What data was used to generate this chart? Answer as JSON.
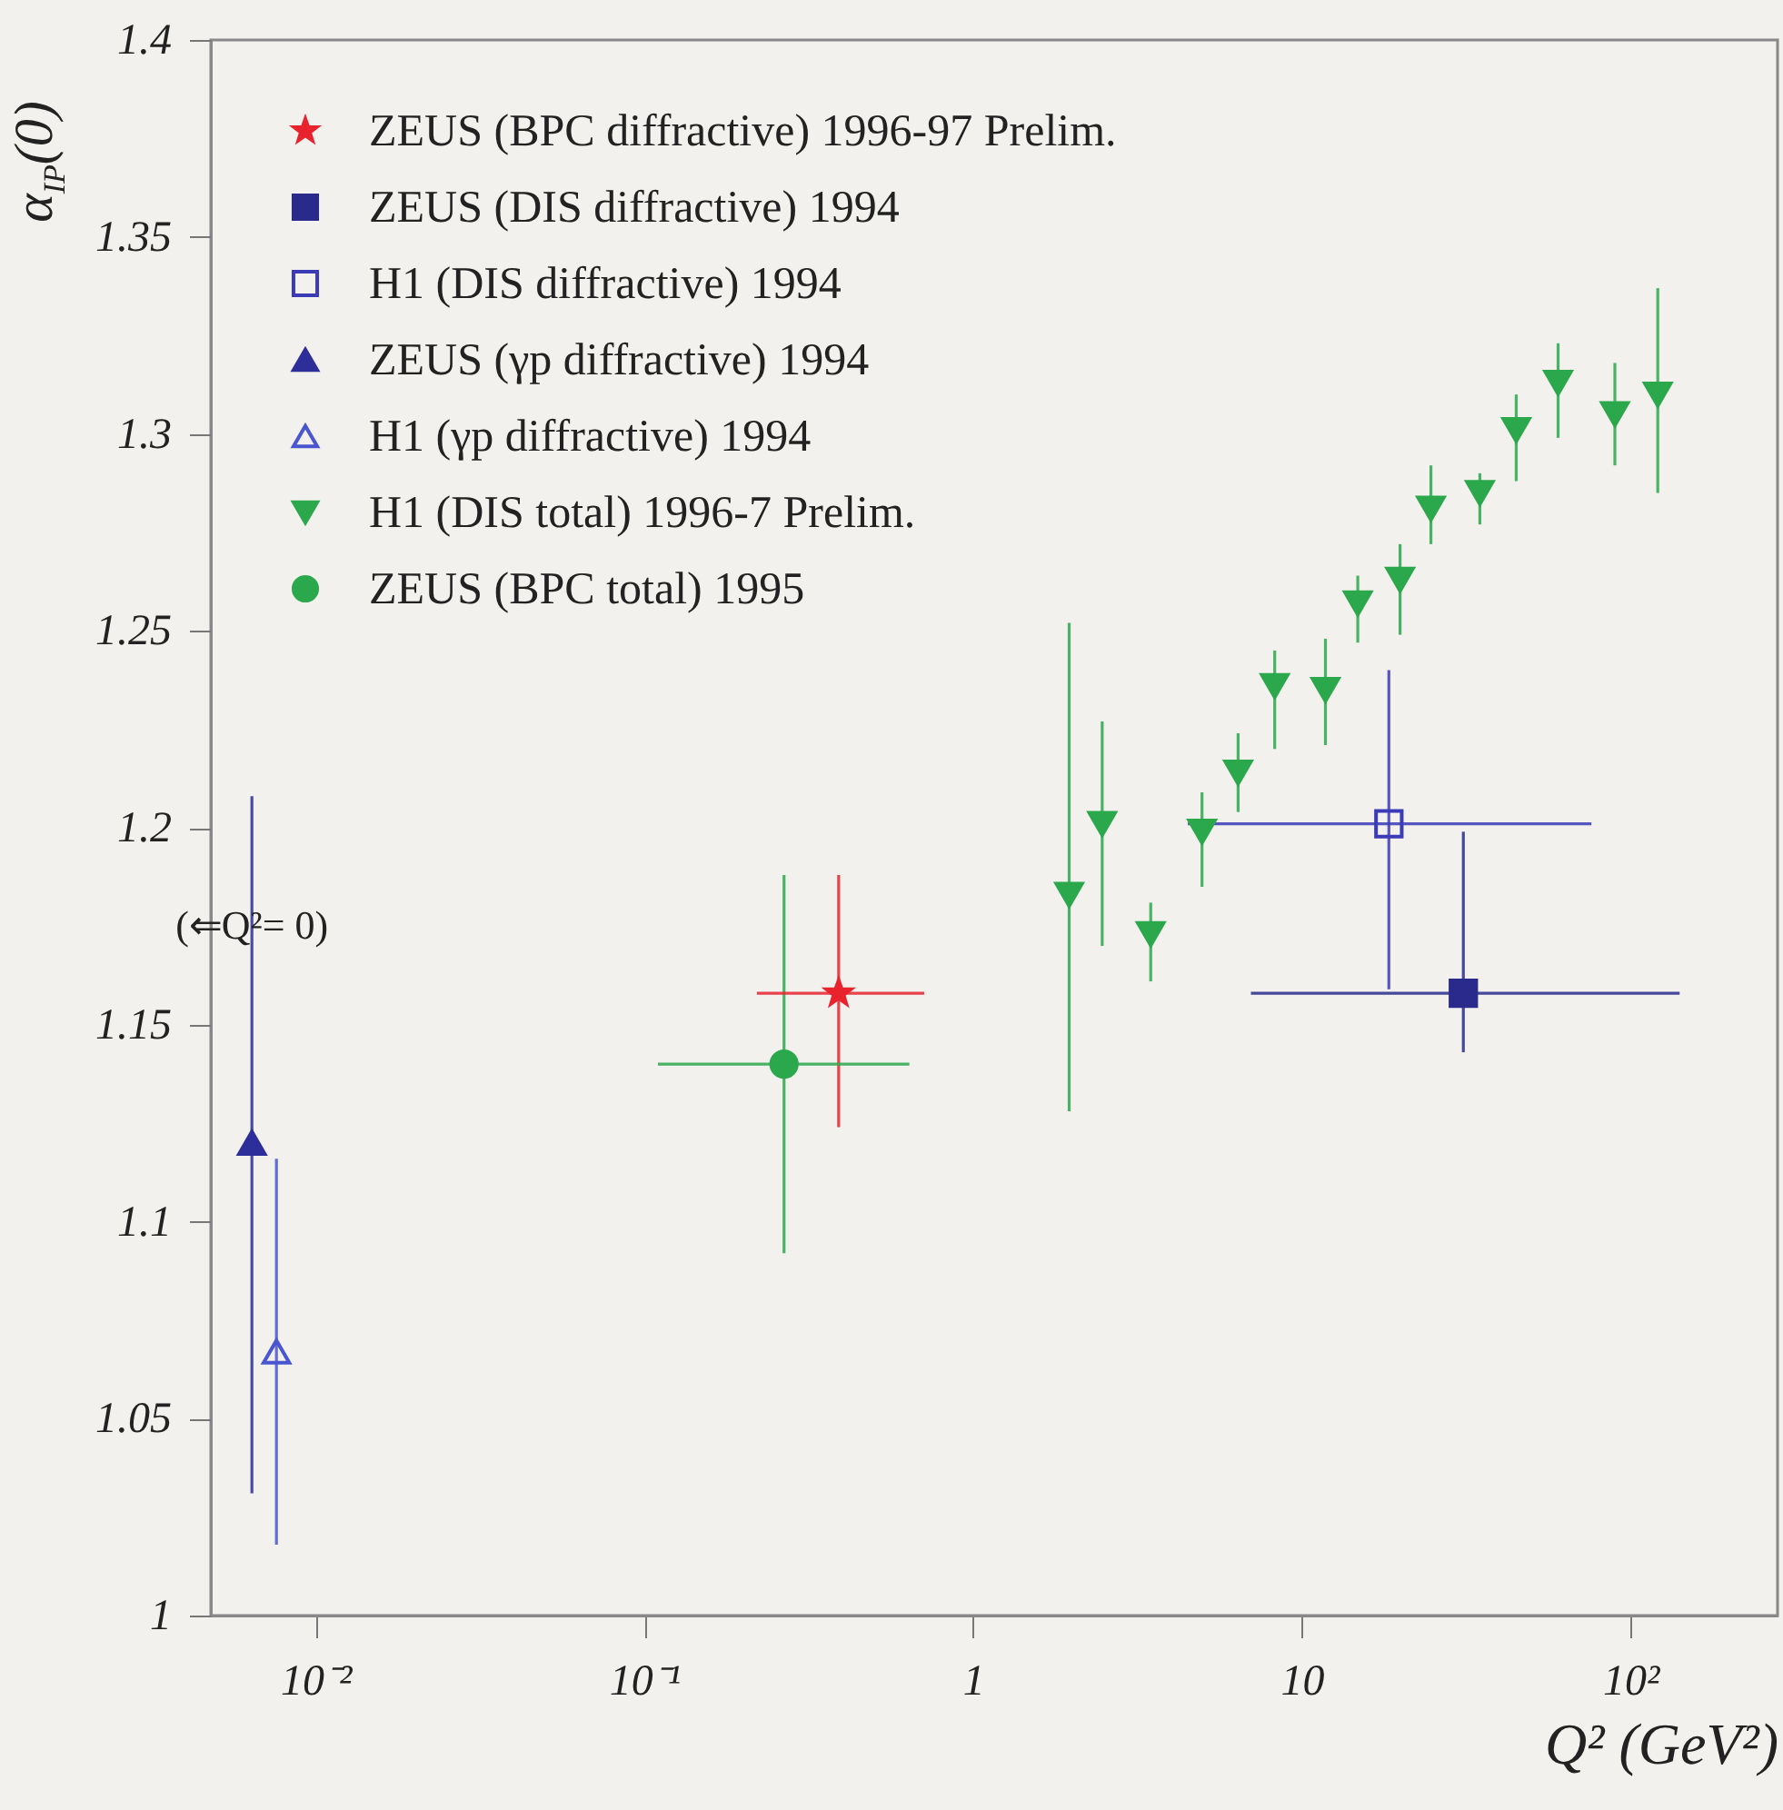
{
  "chart_data": {
    "type": "scatter",
    "xlabel": "Q² (GeV²)",
    "ylabel": "α$_{IP}$(0)",
    "log": "x",
    "xlim": [
      0.0048,
      280
    ],
    "xticks": [
      {
        "value": 0.01,
        "label": "10⁻²"
      },
      {
        "value": 0.1,
        "label": "10⁻¹"
      },
      1,
      10,
      {
        "value": 100,
        "label": "10²"
      }
    ],
    "ylim": [
      1,
      1.4
    ],
    "yticks": [
      1,
      1.05,
      1.1,
      1.15,
      1.2,
      1.25,
      1.3,
      1.35,
      1.4
    ],
    "grid": false,
    "legend": "top left",
    "annotations": [
      {
        "text": "(⇐Q²= 0)",
        "x": 0.0064,
        "y": 1.175
      }
    ],
    "series": [
      {
        "name": "ZEUS (BPC diffractive) 1996-97 Prelim.",
        "color": "#e8232e",
        "marker": "star",
        "x": [
          0.39
        ],
        "values": [
          1.158
        ],
        "errors": [
          [
            1.124,
            1.188
          ]
        ],
        "xerrors": [
          [
            0.22,
            0.71
          ]
        ]
      },
      {
        "name": "ZEUS (DIS diffractive) 1994",
        "color": "#2a2a8c",
        "marker": "square",
        "x": [
          31
        ],
        "values": [
          1.158
        ],
        "errors": [
          [
            1.143,
            1.199
          ]
        ],
        "xerrors": [
          [
            7.0,
            141
          ]
        ]
      },
      {
        "name": "H1 (DIS diffractive) 1994",
        "color": "#3b3bb8",
        "marker": "square-open",
        "x": [
          18.4
        ],
        "values": [
          1.201
        ],
        "errors": [
          [
            1.159,
            1.24
          ]
        ],
        "xerrors": [
          [
            4.5,
            76
          ]
        ]
      },
      {
        "name": "ZEUS (γp diffractive) 1994",
        "color": "#2e2e9a",
        "marker": "triangle",
        "x": [
          0.0064
        ],
        "values": [
          1.12
        ],
        "errors": [
          [
            1.031,
            1.208
          ]
        ]
      },
      {
        "name": "H1 (γp diffractive) 1994",
        "color": "#4a55d0",
        "marker": "triangle-open",
        "x": [
          0.0076
        ],
        "values": [
          1.067
        ],
        "errors": [
          [
            1.018,
            1.116
          ]
        ]
      },
      {
        "name": "H1 (DIS total) 1996-7 Prelim.",
        "color": "#2ca84c",
        "marker": "triangle-down",
        "x": [
          1.96,
          2.47,
          3.47,
          4.97,
          6.4,
          8.27,
          11.8,
          14.8,
          19.9,
          24.7,
          34.8,
          44.9,
          60.2,
          89.6,
          121
        ],
        "values": [
          1.183,
          1.201,
          1.173,
          1.199,
          1.214,
          1.236,
          1.235,
          1.257,
          1.263,
          1.281,
          1.285,
          1.301,
          1.313,
          1.305,
          1.31
        ],
        "errors": [
          [
            1.128,
            1.252
          ],
          [
            1.17,
            1.227
          ],
          [
            1.161,
            1.181
          ],
          [
            1.185,
            1.209
          ],
          [
            1.204,
            1.224
          ],
          [
            1.22,
            1.245
          ],
          [
            1.221,
            1.248
          ],
          [
            1.247,
            1.264
          ],
          [
            1.249,
            1.272
          ],
          [
            1.272,
            1.292
          ],
          [
            1.277,
            1.29
          ],
          [
            1.288,
            1.31
          ],
          [
            1.299,
            1.323
          ],
          [
            1.292,
            1.318
          ],
          [
            1.285,
            1.337
          ]
        ]
      },
      {
        "name": "ZEUS (BPC total) 1995",
        "color": "#2ca84c",
        "marker": "circle",
        "x": [
          0.266
        ],
        "values": [
          1.14
        ],
        "errors": [
          [
            1.092,
            1.188
          ]
        ],
        "xerrors": [
          [
            0.11,
            0.64
          ]
        ]
      }
    ]
  }
}
